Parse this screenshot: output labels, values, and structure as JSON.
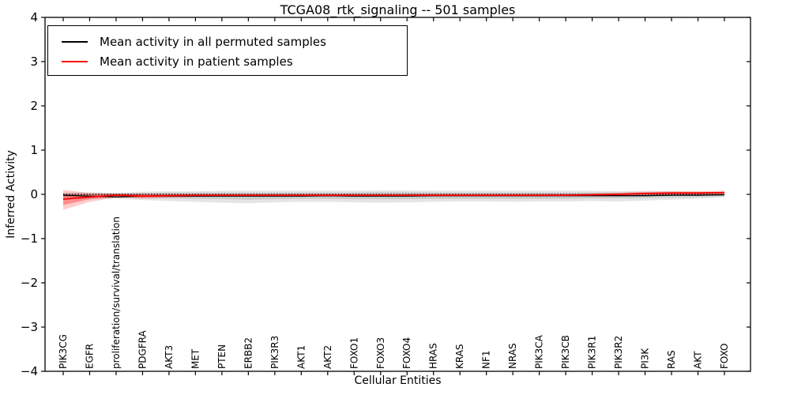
{
  "figure": {
    "title": "TCGA08_rtk_signaling -- 501 samples",
    "xlabel": "Cellular Entities",
    "ylabel": "Inferred Activity"
  },
  "legend": {
    "items": [
      {
        "label": "Mean activity in all permuted samples",
        "color": "#000000"
      },
      {
        "label": "Mean activity in patient samples",
        "color": "#ff0000"
      }
    ]
  },
  "chart_data": {
    "type": "line",
    "title": "TCGA08_rtk_signaling -- 501 samples",
    "xlabel": "Cellular Entities",
    "ylabel": "Inferred Activity",
    "ylim": [
      -4,
      4
    ],
    "yticks": [
      4,
      3,
      2,
      1,
      0,
      -1,
      -2,
      -3,
      -4
    ],
    "grid": false,
    "legend_position": "upper left",
    "categories": [
      "PIK3CG",
      "EGFR",
      "proliferation/survival/translation",
      "PDGFRA",
      "AKT3",
      "MET",
      "PTEN",
      "ERBB2",
      "PIK3R3",
      "AKT1",
      "AKT2",
      "FOXO1",
      "FOXO3",
      "FOXO4",
      "HRAS",
      "KRAS",
      "NF1",
      "NRAS",
      "PIK3CA",
      "PIK3CB",
      "PIK3R1",
      "PIK3R2",
      "PI3K",
      "RAS",
      "AKT",
      "FOXO"
    ],
    "series": [
      {
        "name": "Mean activity in all permuted samples",
        "color": "#000000",
        "style": "solid",
        "values": [
          -0.02,
          -0.04,
          -0.06,
          -0.04,
          -0.04,
          -0.04,
          -0.04,
          -0.04,
          -0.04,
          -0.04,
          -0.03,
          -0.04,
          -0.04,
          -0.04,
          -0.03,
          -0.03,
          -0.03,
          -0.03,
          -0.03,
          -0.03,
          -0.03,
          -0.03,
          -0.03,
          -0.02,
          -0.02,
          -0.01
        ]
      },
      {
        "name": "Mean activity in patient samples",
        "color": "#ff0000",
        "style": "solid",
        "values": [
          -0.11,
          -0.06,
          -0.02,
          -0.04,
          -0.03,
          -0.02,
          -0.02,
          -0.02,
          -0.02,
          -0.02,
          -0.02,
          -0.02,
          -0.02,
          -0.02,
          -0.02,
          -0.02,
          -0.02,
          -0.02,
          -0.02,
          -0.02,
          -0.01,
          0.0,
          0.02,
          0.03,
          0.03,
          0.04
        ]
      }
    ],
    "bands": [
      {
        "name": "permuted-spread-outer",
        "color": "#000000",
        "opacity": 0.1,
        "upper": [
          0.04,
          0.05,
          0.03,
          0.06,
          0.07,
          0.07,
          0.08,
          0.08,
          0.08,
          0.08,
          0.08,
          0.08,
          0.09,
          0.09,
          0.08,
          0.08,
          0.08,
          0.08,
          0.08,
          0.08,
          0.08,
          0.07,
          0.08,
          0.07,
          0.06,
          0.04
        ],
        "lower": [
          -0.1,
          -0.11,
          -0.1,
          -0.13,
          -0.15,
          -0.17,
          -0.19,
          -0.2,
          -0.18,
          -0.17,
          -0.17,
          -0.18,
          -0.19,
          -0.18,
          -0.17,
          -0.16,
          -0.16,
          -0.17,
          -0.16,
          -0.16,
          -0.15,
          -0.16,
          -0.14,
          -0.12,
          -0.1,
          -0.07
        ]
      },
      {
        "name": "permuted-spread-inner",
        "color": "#000000",
        "opacity": 0.12,
        "upper": [
          0.02,
          0.02,
          0.02,
          0.03,
          0.04,
          0.04,
          0.04,
          0.04,
          0.04,
          0.04,
          0.04,
          0.04,
          0.05,
          0.05,
          0.04,
          0.04,
          0.04,
          0.04,
          0.04,
          0.04,
          0.04,
          0.04,
          0.04,
          0.03,
          0.03,
          0.02
        ],
        "lower": [
          -0.06,
          -0.07,
          -0.06,
          -0.08,
          -0.09,
          -0.1,
          -0.11,
          -0.12,
          -0.11,
          -0.1,
          -0.1,
          -0.11,
          -0.11,
          -0.11,
          -0.1,
          -0.1,
          -0.1,
          -0.1,
          -0.1,
          -0.1,
          -0.09,
          -0.09,
          -0.08,
          -0.07,
          -0.06,
          -0.04
        ]
      },
      {
        "name": "patient-spread-outer",
        "color": "#ff0000",
        "opacity": 0.2,
        "upper": [
          0.1,
          0.03,
          0.02,
          0.02,
          0.01,
          0.01,
          0.01,
          0.01,
          0.01,
          0.01,
          0.01,
          0.01,
          0.01,
          0.01,
          0.01,
          0.01,
          0.01,
          0.01,
          0.01,
          0.01,
          0.02,
          0.04,
          0.06,
          0.07,
          0.07,
          0.08
        ],
        "lower": [
          -0.35,
          -0.17,
          -0.07,
          -0.1,
          -0.08,
          -0.06,
          -0.05,
          -0.05,
          -0.05,
          -0.05,
          -0.05,
          -0.05,
          -0.05,
          -0.05,
          -0.05,
          -0.05,
          -0.05,
          -0.05,
          -0.05,
          -0.04,
          -0.04,
          -0.03,
          -0.02,
          -0.01,
          -0.01,
          0.0
        ]
      },
      {
        "name": "patient-spread-inner",
        "color": "#ff0000",
        "opacity": 0.3,
        "upper": [
          0.0,
          -0.01,
          0.0,
          0.0,
          -0.01,
          -0.01,
          -0.01,
          -0.01,
          -0.01,
          -0.01,
          -0.01,
          -0.01,
          -0.01,
          -0.01,
          -0.01,
          -0.01,
          -0.01,
          -0.01,
          -0.01,
          -0.01,
          0.0,
          0.01,
          0.04,
          0.05,
          0.05,
          0.06
        ],
        "lower": [
          -0.24,
          -0.11,
          -0.04,
          -0.07,
          -0.05,
          -0.04,
          -0.04,
          -0.04,
          -0.04,
          -0.04,
          -0.04,
          -0.04,
          -0.04,
          -0.04,
          -0.04,
          -0.04,
          -0.04,
          -0.04,
          -0.04,
          -0.03,
          -0.03,
          -0.02,
          0.0,
          0.01,
          0.01,
          0.02
        ]
      }
    ],
    "zero_line": {
      "value": 0,
      "style": "dotted",
      "color": "#000000"
    }
  }
}
